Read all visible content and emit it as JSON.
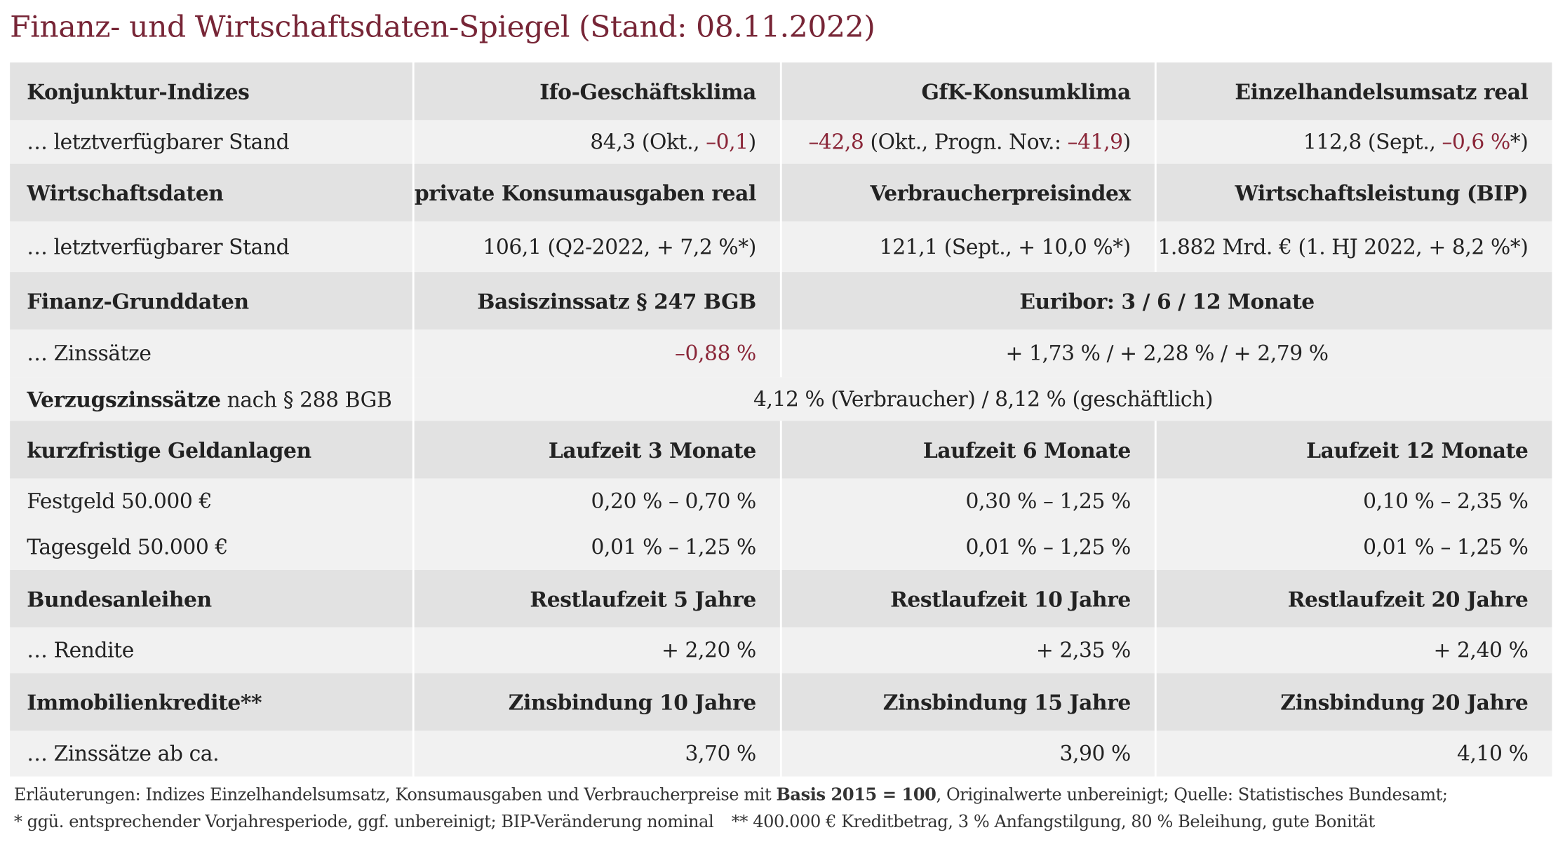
{
  "header": {
    "title": "Finanz- und Wirtschaftsdaten-Spiegel (Stand: 08.11.2022)"
  },
  "table": {
    "rows": [
      [
        [
          "Konjunktur-Indizes"
        ],
        [
          "Ifo-Geschäftsklima"
        ],
        [
          "GfK-Konsumklima"
        ],
        [
          "Einzelhandelsumsatz real"
        ]
      ],
      [
        [
          "… letztverfügbarer Stand"
        ],
        [
          "84,3 (Okt., ",
          "–0,1",
          ")"
        ],
        [
          "–42,8",
          " (Okt., Progn. Nov.: ",
          "–41,9",
          ")"
        ],
        [
          "112,8 (Sept., ",
          "–0,6 %",
          "*)"
        ]
      ],
      [
        [
          "Wirtschaftsdaten"
        ],
        [
          "private Konsumausgaben real"
        ],
        [
          "Verbraucherpreisindex"
        ],
        [
          "Wirtschaftsleistung (BIP)"
        ]
      ],
      [
        [
          "… letztverfügbarer Stand"
        ],
        [
          "106,1 (Q2-2022, + 7,2 %*)"
        ],
        [
          "121,1 (Sept., + 10,0 %*)"
        ],
        [
          "1.882 Mrd. € (1. HJ 2022, + 8,2 %*)"
        ]
      ],
      [
        [
          "Finanz-Grunddaten"
        ],
        [
          "Basiszinssatz § 247 BGB"
        ],
        [
          "Euribor: 3 / 6 / 12 Monate"
        ]
      ],
      [
        [
          "… Zinssätze"
        ],
        [
          "–0,88 %"
        ],
        [
          "+ 1,73 % / + 2,28 % / + 2,79 %"
        ]
      ],
      [
        [
          "Verzugszinssätze",
          " nach § 288 BGB"
        ],
        [
          "4,12 % (Verbraucher) / 8,12 % (geschäftlich)"
        ]
      ],
      [
        [
          "kurzfristige Geldanlagen"
        ],
        [
          "Laufzeit 3 Monate"
        ],
        [
          "Laufzeit 6 Monate"
        ],
        [
          "Laufzeit 12 Monate"
        ]
      ],
      [
        [
          "Festgeld 50.000 €"
        ],
        [
          "0,20 % – 0,70 %"
        ],
        [
          "0,30 % – 1,25 %"
        ],
        [
          "0,10 % – 2,35 %"
        ]
      ],
      [
        [
          "Tagesgeld 50.000 €"
        ],
        [
          "0,01 % – 1,25 %"
        ],
        [
          "0,01 % – 1,25 %"
        ],
        [
          "0,01 % – 1,25 %"
        ]
      ],
      [
        [
          "Bundesanleihen"
        ],
        [
          "Restlaufzeit 5 Jahre"
        ],
        [
          "Restlaufzeit 10 Jahre"
        ],
        [
          "Restlaufzeit 20 Jahre"
        ]
      ],
      [
        [
          "… Rendite"
        ],
        [
          "+ 2,20 %"
        ],
        [
          "+ 2,35 %"
        ],
        [
          "+ 2,40 %"
        ]
      ],
      [
        [
          "Immobilienkredite**"
        ],
        [
          "Zinsbindung 10 Jahre"
        ],
        [
          "Zinsbindung 15 Jahre"
        ],
        [
          "Zinsbindung 20 Jahre"
        ]
      ],
      [
        [
          "… Zinssätze ab ca."
        ],
        [
          "3,70 %"
        ],
        [
          "3,90 %"
        ],
        [
          "4,10 %"
        ]
      ]
    ]
  },
  "footnotes": [
    [
      "Erläuterungen: Indizes Einzelhandelsumsatz, Konsumausgaben und Verbraucherpreise mit ",
      "Basis 2015 = 100",
      ", Originalwerte unbereinigt; Quelle: Statistisches Bundesamt;"
    ],
    [
      "* ggü. entsprechender Vorjahresperiode, ggf. unbereinigt; BIP-Veränderung nominal",
      "** 400.000 € Kreditbetrag, 3 % Anfangstilgung, 80 % Beleihung, gute Bonität"
    ]
  ]
}
